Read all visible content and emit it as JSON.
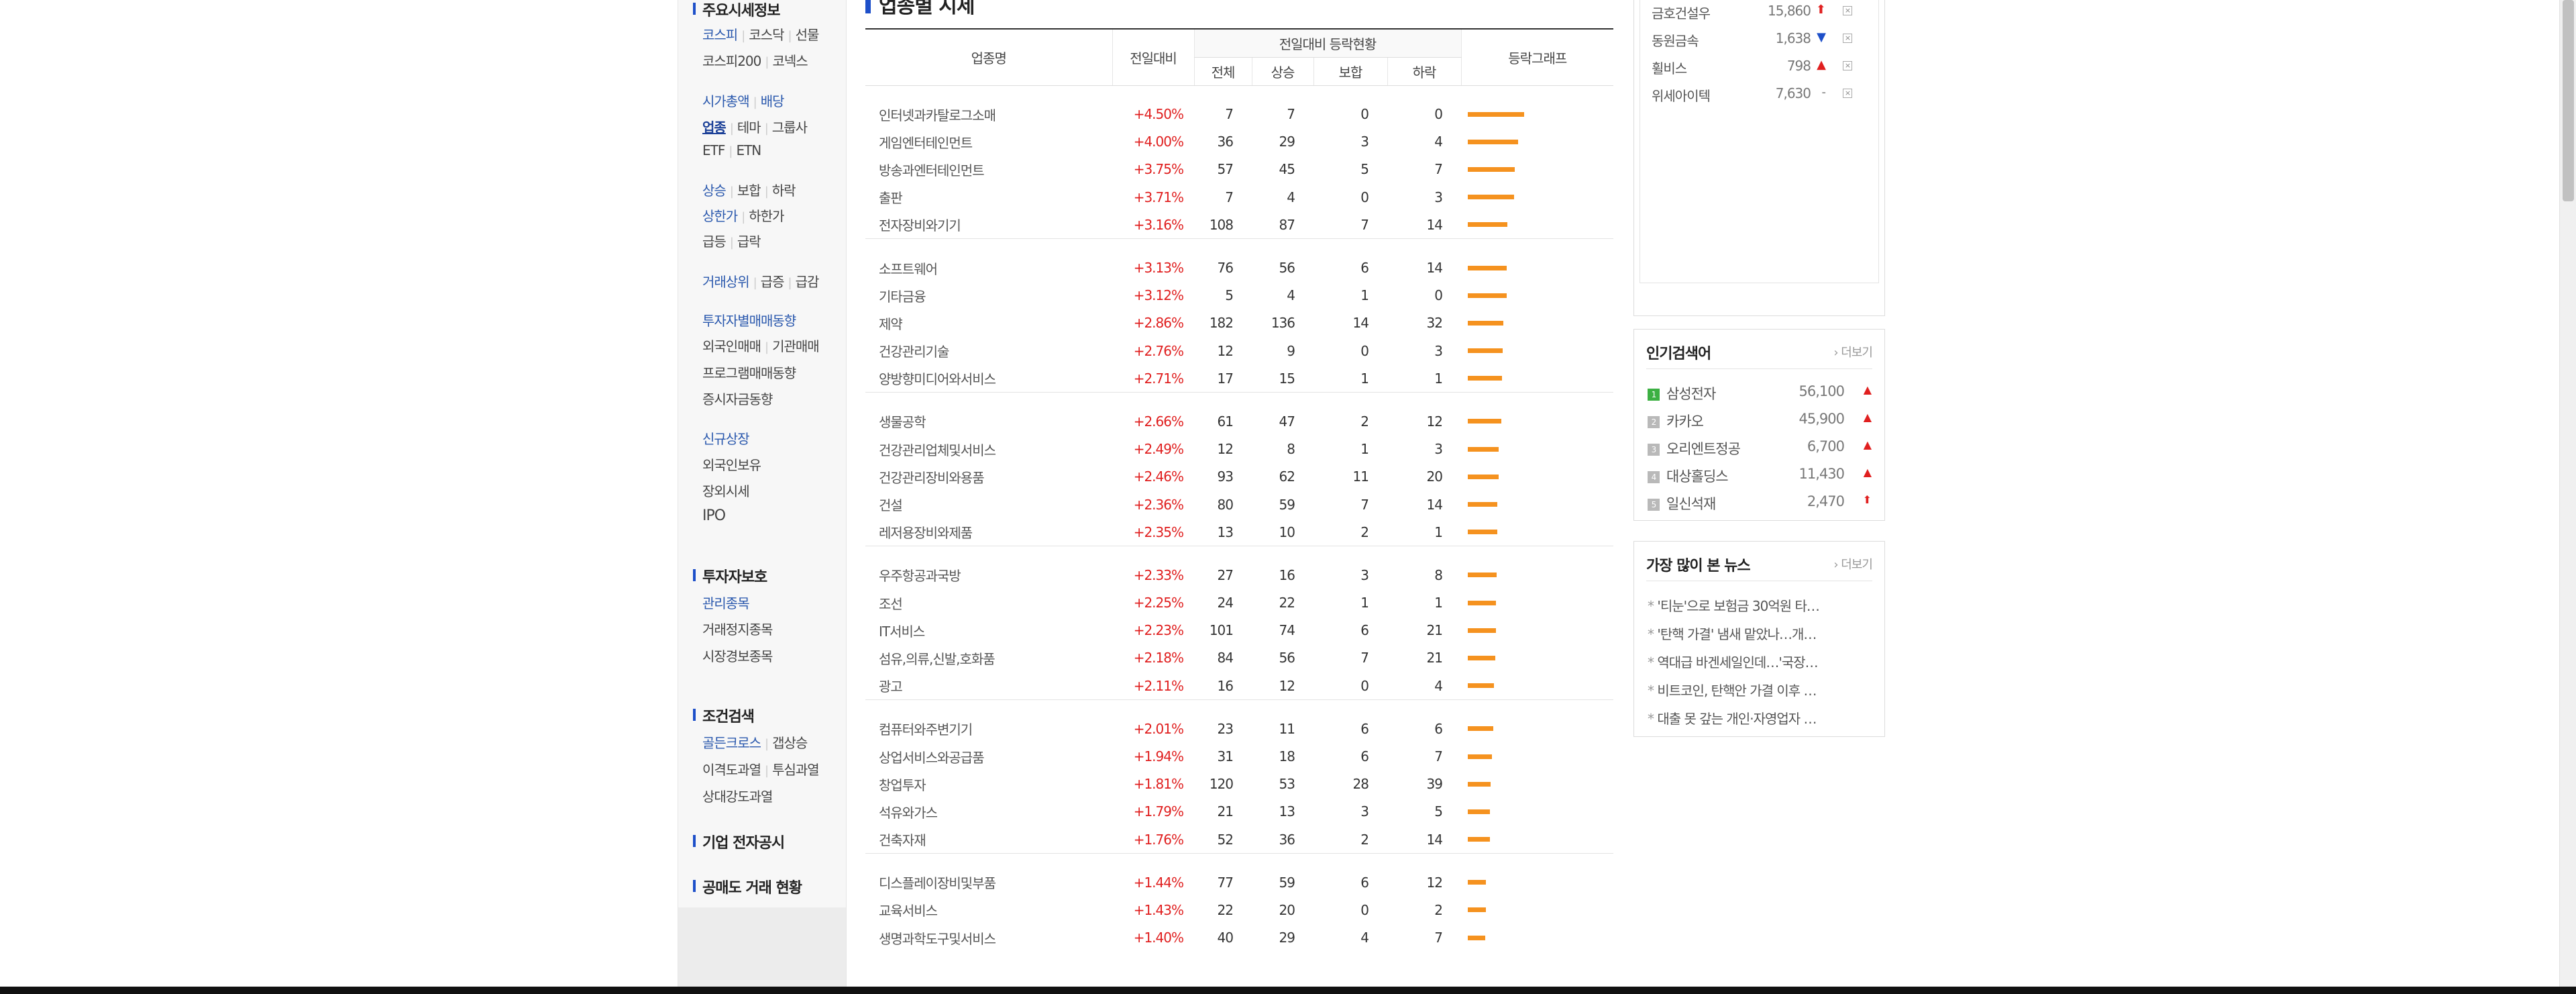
{
  "leftnav": {
    "section1_title": "주요시세정보",
    "row1": [
      "코스피",
      "코스닥",
      "선물"
    ],
    "row2": [
      "코스피200",
      "코넥스"
    ],
    "row3": [
      "시가총액",
      "배당"
    ],
    "row4": [
      "업종",
      "테마",
      "그룹사"
    ],
    "row5": [
      "ETF",
      "ETN"
    ],
    "row6": [
      "상승",
      "보합",
      "하락"
    ],
    "row7": [
      "상한가",
      "하한가"
    ],
    "row8": [
      "급등",
      "급락"
    ],
    "row9": [
      "거래상위",
      "급증",
      "급감"
    ],
    "row10": "투자자별매매동향",
    "row11": [
      "외국인매매",
      "기관매매"
    ],
    "row12": "프로그램매매동향",
    "row13": "증시자금동향",
    "row14": "신규상장",
    "row15": "외국인보유",
    "row16": "장외시세",
    "row17": "IPO",
    "section2_title": "투자자보호",
    "row18": "관리종목",
    "row19": "거래정지종목",
    "row20": "시장경보종목",
    "section3_title": "조건검색",
    "row21": [
      "골든크로스",
      "갭상승"
    ],
    "row22": [
      "이격도과열",
      "투심과열"
    ],
    "row23": "상대강도과열",
    "section4_title": "기업 전자공시",
    "section5_title": "공매도 거래 현황"
  },
  "main": {
    "title": "업종별 시세",
    "headers": {
      "name": "업종명",
      "change": "전일대비",
      "group": "전일대비 등락현황",
      "total": "전체",
      "up": "상승",
      "flat": "보합",
      "down": "하락",
      "graph": "등락그래프"
    },
    "groups": [
      [
        {
          "name": "인터넷과카탈로그소매",
          "rate": "+4.50%",
          "total": "7",
          "up": "7",
          "flat": "0",
          "down": "0",
          "pct": 4.5
        },
        {
          "name": "게임엔터테인먼트",
          "rate": "+4.00%",
          "total": "36",
          "up": "29",
          "flat": "3",
          "down": "4",
          "pct": 4.0
        },
        {
          "name": "방송과엔터테인먼트",
          "rate": "+3.75%",
          "total": "57",
          "up": "45",
          "flat": "5",
          "down": "7",
          "pct": 3.75
        },
        {
          "name": "출판",
          "rate": "+3.71%",
          "total": "7",
          "up": "4",
          "flat": "0",
          "down": "3",
          "pct": 3.71
        },
        {
          "name": "전자장비와기기",
          "rate": "+3.16%",
          "total": "108",
          "up": "87",
          "flat": "7",
          "down": "14",
          "pct": 3.16
        }
      ],
      [
        {
          "name": "소프트웨어",
          "rate": "+3.13%",
          "total": "76",
          "up": "56",
          "flat": "6",
          "down": "14",
          "pct": 3.13
        },
        {
          "name": "기타금융",
          "rate": "+3.12%",
          "total": "5",
          "up": "4",
          "flat": "1",
          "down": "0",
          "pct": 3.12
        },
        {
          "name": "제약",
          "rate": "+2.86%",
          "total": "182",
          "up": "136",
          "flat": "14",
          "down": "32",
          "pct": 2.86
        },
        {
          "name": "건강관리기술",
          "rate": "+2.76%",
          "total": "12",
          "up": "9",
          "flat": "0",
          "down": "3",
          "pct": 2.76
        },
        {
          "name": "양방향미디어와서비스",
          "rate": "+2.71%",
          "total": "17",
          "up": "15",
          "flat": "1",
          "down": "1",
          "pct": 2.71
        }
      ],
      [
        {
          "name": "생물공학",
          "rate": "+2.66%",
          "total": "61",
          "up": "47",
          "flat": "2",
          "down": "12",
          "pct": 2.66
        },
        {
          "name": "건강관리업체및서비스",
          "rate": "+2.49%",
          "total": "12",
          "up": "8",
          "flat": "1",
          "down": "3",
          "pct": 2.49
        },
        {
          "name": "건강관리장비와용품",
          "rate": "+2.46%",
          "total": "93",
          "up": "62",
          "flat": "11",
          "down": "20",
          "pct": 2.46
        },
        {
          "name": "건설",
          "rate": "+2.36%",
          "total": "80",
          "up": "59",
          "flat": "7",
          "down": "14",
          "pct": 2.36
        },
        {
          "name": "레저용장비와제품",
          "rate": "+2.35%",
          "total": "13",
          "up": "10",
          "flat": "2",
          "down": "1",
          "pct": 2.35
        }
      ],
      [
        {
          "name": "우주항공과국방",
          "rate": "+2.33%",
          "total": "27",
          "up": "16",
          "flat": "3",
          "down": "8",
          "pct": 2.33
        },
        {
          "name": "조선",
          "rate": "+2.25%",
          "total": "24",
          "up": "22",
          "flat": "1",
          "down": "1",
          "pct": 2.25
        },
        {
          "name": "IT서비스",
          "rate": "+2.23%",
          "total": "101",
          "up": "74",
          "flat": "6",
          "down": "21",
          "pct": 2.23
        },
        {
          "name": "섬유,의류,신발,호화품",
          "rate": "+2.18%",
          "total": "84",
          "up": "56",
          "flat": "7",
          "down": "21",
          "pct": 2.18
        },
        {
          "name": "광고",
          "rate": "+2.11%",
          "total": "16",
          "up": "12",
          "flat": "0",
          "down": "4",
          "pct": 2.11
        }
      ],
      [
        {
          "name": "컴퓨터와주변기기",
          "rate": "+2.01%",
          "total": "23",
          "up": "11",
          "flat": "6",
          "down": "6",
          "pct": 2.01
        },
        {
          "name": "상업서비스와공급품",
          "rate": "+1.94%",
          "total": "31",
          "up": "18",
          "flat": "6",
          "down": "7",
          "pct": 1.94
        },
        {
          "name": "창업투자",
          "rate": "+1.81%",
          "total": "120",
          "up": "53",
          "flat": "28",
          "down": "39",
          "pct": 1.81
        },
        {
          "name": "석유와가스",
          "rate": "+1.79%",
          "total": "21",
          "up": "13",
          "flat": "3",
          "down": "5",
          "pct": 1.79
        },
        {
          "name": "건축자재",
          "rate": "+1.76%",
          "total": "52",
          "up": "36",
          "flat": "2",
          "down": "14",
          "pct": 1.76
        }
      ],
      [
        {
          "name": "디스플레이장비및부품",
          "rate": "+1.44%",
          "total": "77",
          "up": "59",
          "flat": "6",
          "down": "12",
          "pct": 1.44
        },
        {
          "name": "교육서비스",
          "rate": "+1.43%",
          "total": "22",
          "up": "20",
          "flat": "0",
          "down": "2",
          "pct": 1.43
        },
        {
          "name": "생명과학도구및서비스",
          "rate": "+1.40%",
          "total": "40",
          "up": "29",
          "flat": "4",
          "down": "7",
          "pct": 1.4
        }
      ]
    ]
  },
  "favorites": {
    "items": [
      {
        "name": "금호건설우",
        "value": "15,860",
        "dir": "up-strong"
      },
      {
        "name": "동원금속",
        "value": "1,638",
        "dir": "down"
      },
      {
        "name": "휠비스",
        "value": "798",
        "dir": "up"
      },
      {
        "name": "위세아이텍",
        "value": "7,630",
        "dir": "flat"
      }
    ],
    "arrows": {
      "up-strong": "⬆",
      "up": "▲",
      "down": "▼",
      "flat": "-"
    },
    "remove_glyph": "×"
  },
  "popular": {
    "title": "인기검색어",
    "more": "› 더보기",
    "items": [
      {
        "rank": "1",
        "name": "삼성전자",
        "value": "56,100",
        "arrow": "▲"
      },
      {
        "rank": "2",
        "name": "카카오",
        "value": "45,900",
        "arrow": "▲"
      },
      {
        "rank": "3",
        "name": "오리엔트정공",
        "value": "6,700",
        "arrow": "▲"
      },
      {
        "rank": "4",
        "name": "대상홀딩스",
        "value": "11,430",
        "arrow": "▲"
      },
      {
        "rank": "5",
        "name": "일신석재",
        "value": "2,470",
        "arrow": "⬆"
      }
    ]
  },
  "news": {
    "title": "가장 많이 본 뉴스",
    "more": "› 더보기",
    "items": [
      "'티눈'으로 보험금 30억원 타…",
      "'탄핵 가결' 냄새 맡았나…개…",
      "역대급 바겐세일인데…'국장…",
      "비트코인, 탄핵안 가결 이후 …",
      "대출 못 갚는 개인·자영업자 …"
    ]
  },
  "colors": {
    "accent": "#1d4fc9",
    "rise": "#e01f1f",
    "fall": "#1d4fc9",
    "bar": "#f5921f"
  }
}
